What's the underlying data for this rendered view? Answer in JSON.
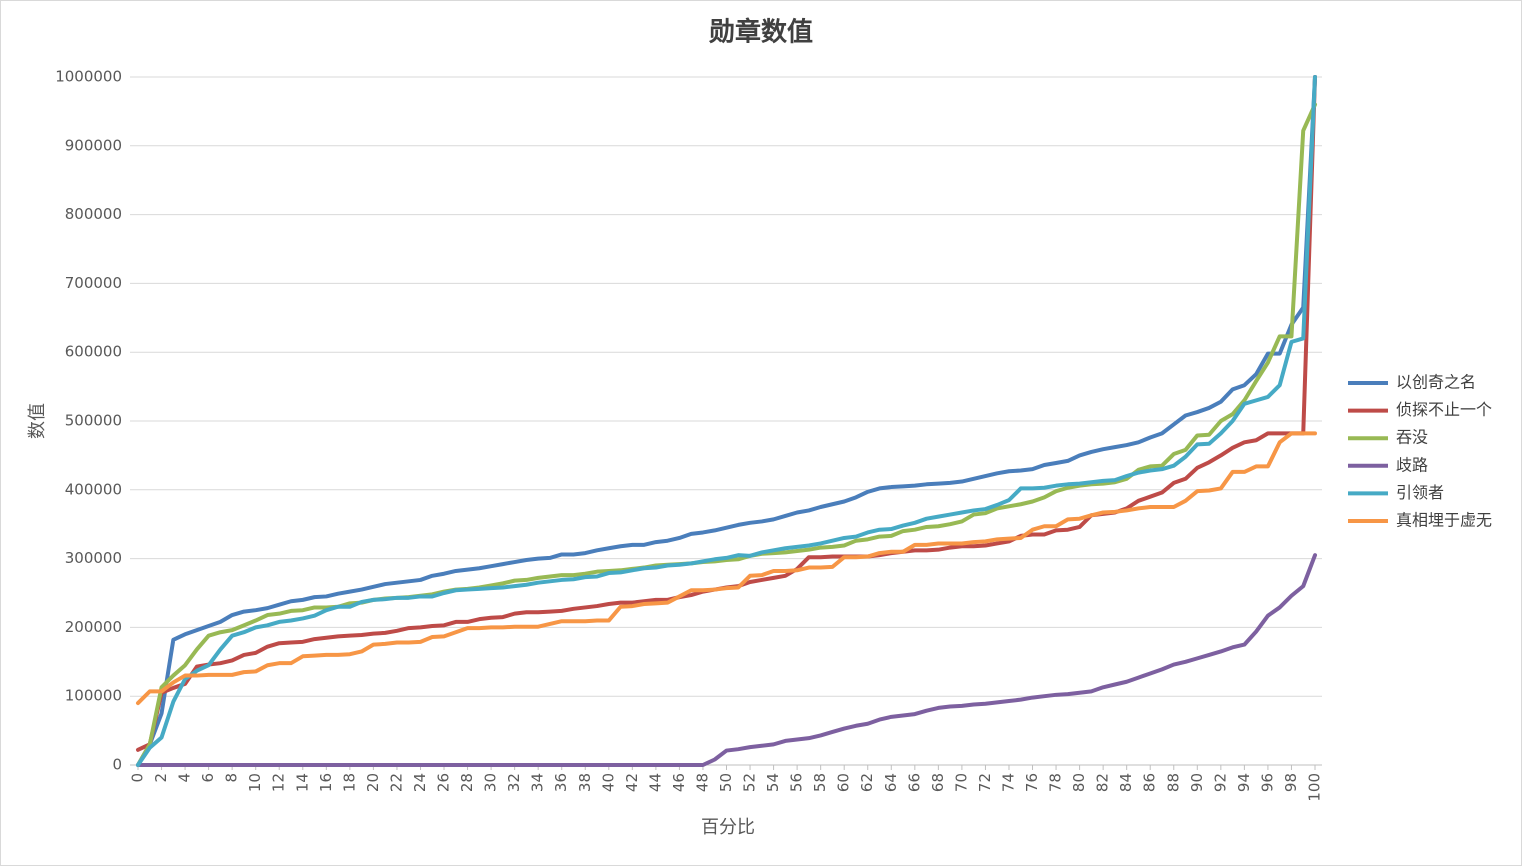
{
  "chart_data": {
    "type": "line",
    "title": "勋章数值",
    "x_label": "百分比",
    "y_label": "数值",
    "x": [
      0,
      1,
      2,
      3,
      4,
      5,
      6,
      7,
      8,
      9,
      10,
      11,
      12,
      13,
      14,
      15,
      16,
      17,
      18,
      19,
      20,
      21,
      22,
      23,
      24,
      25,
      26,
      27,
      28,
      29,
      30,
      31,
      32,
      33,
      34,
      35,
      36,
      37,
      38,
      39,
      40,
      41,
      42,
      43,
      44,
      45,
      46,
      47,
      48,
      49,
      50,
      51,
      52,
      53,
      54,
      55,
      56,
      57,
      58,
      59,
      60,
      61,
      62,
      63,
      64,
      65,
      66,
      67,
      68,
      69,
      70,
      71,
      72,
      73,
      74,
      75,
      76,
      77,
      78,
      79,
      80,
      81,
      82,
      83,
      84,
      85,
      86,
      87,
      88,
      89,
      90,
      91,
      92,
      93,
      94,
      95,
      96,
      97,
      98,
      99,
      100
    ],
    "xlim": [
      0,
      100
    ],
    "xticks": [
      0,
      2,
      4,
      6,
      8,
      10,
      12,
      14,
      16,
      18,
      20,
      22,
      24,
      26,
      28,
      30,
      32,
      34,
      36,
      38,
      40,
      42,
      44,
      46,
      48,
      50,
      52,
      54,
      56,
      58,
      60,
      62,
      64,
      66,
      68,
      70,
      72,
      74,
      76,
      78,
      80,
      82,
      84,
      86,
      88,
      90,
      92,
      94,
      96,
      98,
      100
    ],
    "ylim": [
      0,
      1000000
    ],
    "yticks": [
      0,
      100000,
      200000,
      300000,
      400000,
      500000,
      600000,
      700000,
      800000,
      900000,
      1000000
    ],
    "grid": true,
    "legend": "right",
    "series": [
      {
        "name": "以创奇之名",
        "color": "#4a7ebb",
        "values": [
          0,
          30000,
          75000,
          182000,
          190000,
          196000,
          202000,
          208000,
          218000,
          223000,
          225000,
          228000,
          233000,
          238000,
          240000,
          244000,
          245000,
          249000,
          252000,
          255000,
          259000,
          263000,
          265000,
          267000,
          269000,
          275000,
          278000,
          282000,
          284000,
          286000,
          289000,
          292000,
          295000,
          298000,
          300000,
          301000,
          306000,
          306000,
          308000,
          312000,
          315000,
          318000,
          320000,
          320000,
          324000,
          326000,
          330000,
          336000,
          338000,
          341000,
          345000,
          349000,
          352000,
          354000,
          357000,
          362000,
          367000,
          370000,
          375000,
          379000,
          383000,
          389000,
          397000,
          402000,
          404000,
          405000,
          406000,
          408000,
          409000,
          410000,
          412000,
          416000,
          420000,
          424000,
          427000,
          428000,
          430000,
          436000,
          439000,
          442000,
          450000,
          455000,
          459000,
          462000,
          465000,
          469000,
          476000,
          482000,
          495000,
          508000,
          513000,
          519000,
          528000,
          546000,
          552000,
          568000,
          598000,
          598000,
          640000,
          665000,
          1000000
        ]
      },
      {
        "name": "侦探不止一个",
        "color": "#be4b48",
        "values": [
          22000,
          30000,
          105000,
          112000,
          118000,
          143000,
          146000,
          148000,
          152000,
          160000,
          163000,
          172000,
          177000,
          178000,
          179000,
          183000,
          185000,
          187000,
          188000,
          189000,
          191000,
          192000,
          195000,
          199000,
          200000,
          202000,
          203000,
          208000,
          208000,
          212000,
          214000,
          215000,
          220000,
          222000,
          222000,
          223000,
          224000,
          227000,
          229000,
          231000,
          234000,
          236000,
          236000,
          238000,
          240000,
          240000,
          244000,
          247000,
          252000,
          255000,
          258000,
          260000,
          266000,
          269000,
          272000,
          275000,
          285000,
          302000,
          302000,
          303000,
          303000,
          303000,
          303000,
          305000,
          308000,
          310000,
          312000,
          312000,
          313000,
          316000,
          318000,
          318000,
          319000,
          322000,
          325000,
          333000,
          335000,
          335000,
          341000,
          342000,
          346000,
          363000,
          365000,
          367000,
          373000,
          384000,
          390000,
          396000,
          410000,
          416000,
          432000,
          440000,
          450000,
          461000,
          469000,
          472000,
          482000,
          482000,
          482000,
          482000,
          1000000
        ]
      },
      {
        "name": "吞没",
        "color": "#98b954",
        "values": [
          0,
          30000,
          113000,
          130000,
          145000,
          168000,
          188000,
          193000,
          196000,
          203000,
          210000,
          218000,
          220000,
          224000,
          225000,
          229000,
          229000,
          230000,
          235000,
          236000,
          240000,
          242000,
          243000,
          244000,
          246000,
          248000,
          252000,
          255000,
          256000,
          258000,
          261000,
          264000,
          268000,
          269000,
          272000,
          274000,
          276000,
          276000,
          278000,
          281000,
          282000,
          283000,
          285000,
          287000,
          290000,
          291000,
          292000,
          293000,
          295000,
          296000,
          298000,
          299000,
          304000,
          307000,
          308000,
          309000,
          311000,
          313000,
          316000,
          317000,
          319000,
          326000,
          328000,
          332000,
          333000,
          340000,
          342000,
          346000,
          347000,
          350000,
          354000,
          364000,
          366000,
          373000,
          376000,
          379000,
          383000,
          389000,
          398000,
          403000,
          406000,
          408000,
          409000,
          411000,
          416000,
          429000,
          434000,
          435000,
          452000,
          458000,
          479000,
          480000,
          500000,
          510000,
          530000,
          558000,
          585000,
          623000,
          623000,
          922000,
          960000
        ]
      },
      {
        "name": "歧路",
        "color": "#7d60a0",
        "values": [
          0,
          0,
          0,
          0,
          0,
          0,
          0,
          0,
          0,
          0,
          0,
          0,
          0,
          0,
          0,
          0,
          0,
          0,
          0,
          0,
          0,
          0,
          0,
          0,
          0,
          0,
          0,
          0,
          0,
          0,
          0,
          0,
          0,
          0,
          0,
          0,
          0,
          0,
          0,
          0,
          0,
          0,
          0,
          0,
          0,
          0,
          0,
          0,
          0,
          8000,
          21000,
          23000,
          26000,
          28000,
          30000,
          35000,
          37000,
          39000,
          43000,
          48000,
          53000,
          57000,
          60000,
          66000,
          70000,
          72000,
          74000,
          79000,
          83000,
          85000,
          86000,
          88000,
          89000,
          91000,
          93000,
          95000,
          98000,
          100000,
          102000,
          103000,
          105000,
          107000,
          113000,
          117000,
          121000,
          127000,
          133000,
          139000,
          146000,
          150000,
          155000,
          160000,
          165000,
          171000,
          175000,
          194000,
          217000,
          229000,
          246000,
          260000,
          305000
        ]
      },
      {
        "name": "引领者",
        "color": "#46aac5",
        "values": [
          0,
          25000,
          40000,
          92000,
          125000,
          137000,
          145000,
          168000,
          188000,
          193000,
          200000,
          203000,
          208000,
          210000,
          213000,
          217000,
          225000,
          230000,
          230000,
          237000,
          240000,
          241000,
          243000,
          243000,
          245000,
          245000,
          250000,
          254000,
          255000,
          256000,
          257000,
          258000,
          260000,
          262000,
          265000,
          267000,
          269000,
          270000,
          273000,
          274000,
          279000,
          280000,
          283000,
          286000,
          287000,
          290000,
          291000,
          293000,
          296000,
          299000,
          301000,
          305000,
          304000,
          309000,
          312000,
          315000,
          317000,
          319000,
          322000,
          326000,
          330000,
          332000,
          338000,
          342000,
          343000,
          348000,
          352000,
          358000,
          361000,
          364000,
          367000,
          370000,
          372000,
          378000,
          385000,
          402000,
          402000,
          403000,
          406000,
          408000,
          409000,
          411000,
          413000,
          414000,
          420000,
          425000,
          428000,
          430000,
          435000,
          448000,
          466000,
          467000,
          482000,
          500000,
          525000,
          530000,
          535000,
          552000,
          615000,
          620000,
          1000000
        ]
      },
      {
        "name": "真相埋于虚无",
        "color": "#f79646",
        "values": [
          90000,
          107000,
          107000,
          120000,
          130000,
          130000,
          131000,
          131000,
          131000,
          135000,
          136000,
          145000,
          148000,
          148000,
          158000,
          159000,
          160000,
          160000,
          161000,
          165000,
          175000,
          176000,
          178000,
          178000,
          179000,
          186000,
          187000,
          193000,
          199000,
          199000,
          200000,
          200000,
          201000,
          201000,
          201000,
          205000,
          209000,
          209000,
          209000,
          210000,
          210000,
          230000,
          231000,
          234000,
          235000,
          236000,
          245000,
          254000,
          254000,
          255000,
          257000,
          258000,
          275000,
          276000,
          282000,
          282000,
          283000,
          287000,
          287000,
          288000,
          302000,
          302000,
          303000,
          308000,
          310000,
          310000,
          320000,
          320000,
          322000,
          322000,
          322000,
          324000,
          325000,
          328000,
          329000,
          330000,
          342000,
          347000,
          347000,
          357000,
          358000,
          363000,
          367000,
          368000,
          370000,
          373000,
          375000,
          375000,
          375000,
          384000,
          398000,
          399000,
          402000,
          426000,
          426000,
          434000,
          434000,
          469000,
          482000,
          482000,
          482000
        ]
      }
    ]
  }
}
